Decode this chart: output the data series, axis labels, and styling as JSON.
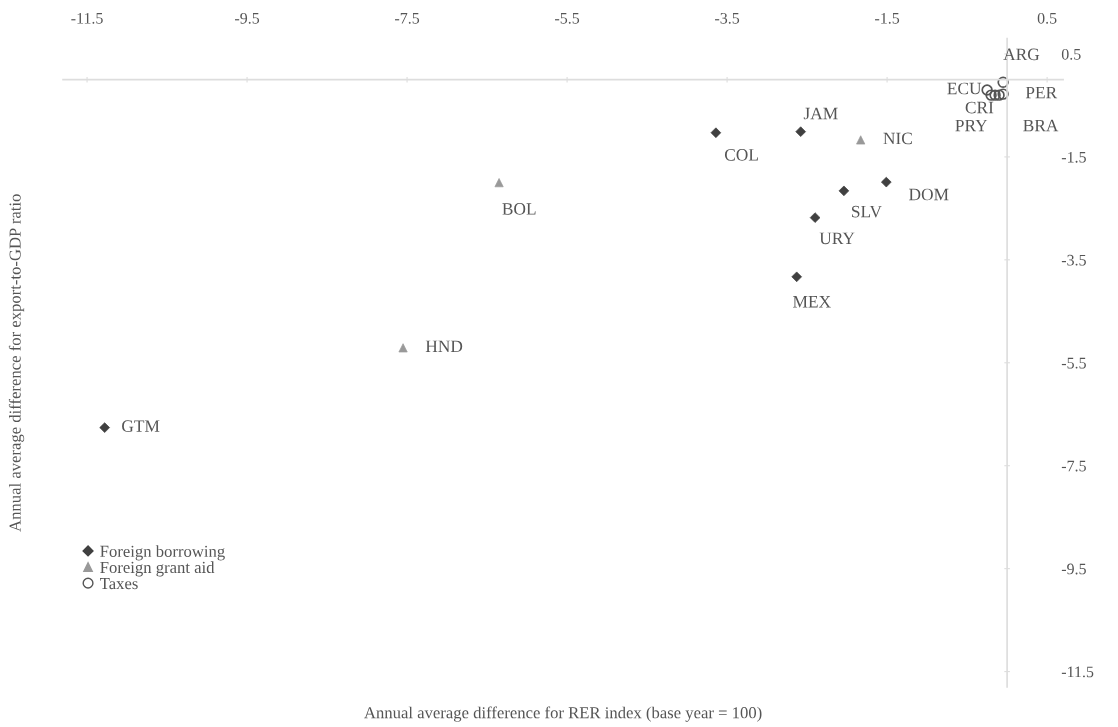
{
  "chart_data": {
    "type": "scatter",
    "xlabel": "Annual average difference for RER index (base year = 100)",
    "ylabel": "Annual average difference for export-to-GDP ratio",
    "xlim": [
      -11.8,
      0.7
    ],
    "ylim": [
      -11.8,
      0.8
    ],
    "xticks": [
      -11.5,
      -9.5,
      -7.5,
      -5.5,
      -3.5,
      -1.5,
      0.5
    ],
    "yticks": [
      0.5,
      -1.5,
      -3.5,
      -5.5,
      -7.5,
      -9.5,
      -11.5
    ],
    "legend": "bottom left",
    "series": [
      {
        "name": "Foreign borrowing",
        "color": "#404040",
        "marker": "diamond",
        "x": [
          -11.28,
          -3.64,
          -2.58,
          -1.51,
          -2.04,
          -2.4,
          -2.63
        ],
        "values": [
          -6.76,
          -1.03,
          -1.01,
          -1.99,
          -2.16,
          -2.68,
          -3.83
        ]
      },
      {
        "name": "Foreign grant aid",
        "color": "#999999",
        "marker": "triangle",
        "x": [
          -7.55,
          -6.35,
          -1.83
        ],
        "values": [
          -5.21,
          -2.0,
          -1.17
        ]
      },
      {
        "name": "Taxes",
        "color": "#555555",
        "marker": "circle",
        "x": [
          -0.05,
          -0.05,
          -0.1,
          -0.15,
          -0.2,
          -0.25
        ],
        "values": [
          -0.05,
          -0.28,
          -0.3,
          -0.3,
          -0.3,
          -0.2
        ]
      }
    ],
    "annotations": [
      {
        "text": "GTM",
        "x": -11.28,
        "y": -6.76
      },
      {
        "text": "COL",
        "x": -3.64,
        "y": -1.03
      },
      {
        "text": "JAM",
        "x": -2.58,
        "y": -1.01
      },
      {
        "text": "DOM",
        "x": -1.51,
        "y": -1.99
      },
      {
        "text": "SLV",
        "x": -2.04,
        "y": -2.16
      },
      {
        "text": "URY",
        "x": -2.4,
        "y": -2.68
      },
      {
        "text": "MEX",
        "x": -2.63,
        "y": -3.83
      },
      {
        "text": "HND",
        "x": -7.55,
        "y": -5.21
      },
      {
        "text": "BOL",
        "x": -6.35,
        "y": -2.0
      },
      {
        "text": "NIC",
        "x": -1.83,
        "y": -1.17
      },
      {
        "text": "ARG",
        "x": -0.05,
        "y": -0.05
      },
      {
        "text": "PER",
        "x": -0.05,
        "y": -0.28
      },
      {
        "text": "BRA",
        "x": -0.1,
        "y": -0.3
      },
      {
        "text": "PRY",
        "x": -0.15,
        "y": -0.3
      },
      {
        "text": "CRI",
        "x": -0.2,
        "y": -0.3
      },
      {
        "text": "ECU",
        "x": -0.25,
        "y": -0.2
      }
    ]
  }
}
